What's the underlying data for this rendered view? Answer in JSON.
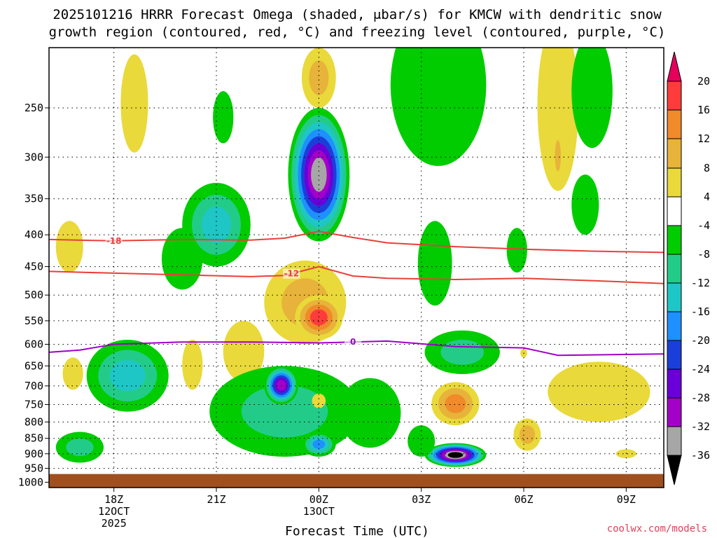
{
  "title_line1": "2025101216 HRRR Forecast Omega (shaded, μbar/s) for KMCW with dendritic snow",
  "title_line2": "growth region (contoured, red, °C) and freezing level (contoured, purple, °C)",
  "credit": "coolwx.com/models",
  "chart_data": {
    "type": "time-height cross section (filled contour + line contours)",
    "title": "2025101216 HRRR Forecast Omega (shaded, μbar/s) for KMCW with dendritic snow growth region (contoured, red, °C) and freezing level (contoured, purple, °C)",
    "xlabel": "Forecast Time (UTC)",
    "ylabel": "",
    "x_range_hours_from_18Z": [
      -1.9,
      16.1
    ],
    "y_range_mb": [
      200,
      1020
    ],
    "y_axis": "pressure (mb), log scale, inverted",
    "x_ticks": [
      {
        "hour": 0,
        "lines": [
          "18Z",
          "12OCT",
          "2025"
        ]
      },
      {
        "hour": 3,
        "lines": [
          "21Z"
        ]
      },
      {
        "hour": 6,
        "lines": [
          "00Z",
          "13OCT"
        ]
      },
      {
        "hour": 9,
        "lines": [
          "03Z"
        ]
      },
      {
        "hour": 12,
        "lines": [
          "06Z"
        ]
      },
      {
        "hour": 15,
        "lines": [
          "09Z"
        ]
      }
    ],
    "y_ticks": [
      {
        "p": 250,
        "label": "250"
      },
      {
        "p": 300,
        "label": "300"
      },
      {
        "p": 350,
        "label": "350"
      },
      {
        "p": 400,
        "label": "400"
      },
      {
        "p": 450,
        "label": "450"
      },
      {
        "p": 500,
        "label": "500"
      },
      {
        "p": 550,
        "label": "550"
      },
      {
        "p": 600,
        "label": "600"
      },
      {
        "p": 650,
        "label": "650"
      },
      {
        "p": 700,
        "label": "700"
      },
      {
        "p": 750,
        "label": "750"
      },
      {
        "p": 800,
        "label": "800"
      },
      {
        "p": 850,
        "label": "850"
      },
      {
        "p": 900,
        "label": "900"
      },
      {
        "p": 950,
        "label": "950"
      },
      {
        "p": 1000,
        "label": "1000"
      }
    ],
    "grid": true,
    "surface_pressure_mb": 970,
    "colorbar": {
      "levels": [
        20,
        16,
        12,
        8,
        4,
        -4,
        -8,
        -12,
        -16,
        -20,
        -24,
        -28,
        -32,
        -36
      ],
      "labels": [
        "20",
        "16",
        "12",
        "8",
        "4",
        "-4",
        "-8",
        "-12",
        "-16",
        "-20",
        "-24",
        "-28",
        "-32",
        "-36"
      ],
      "colors": [
        "#e6005c",
        "#ff3b3b",
        "#f08a2a",
        "#e7b33a",
        "#e9d93a",
        "#ffffff",
        "#00cc00",
        "#22cc88",
        "#1fc6c6",
        "#1e90ff",
        "#1a3fd9",
        "#6a00d9",
        "#a300c8",
        "#a6a6a6",
        "#000000"
      ]
    },
    "omega_features": [
      {
        "hour": -1.3,
        "p": 420,
        "dh": 0.4,
        "dp": 40,
        "value": 5
      },
      {
        "hour": -1.2,
        "p": 670,
        "dh": 0.3,
        "dp": 40,
        "value": 5
      },
      {
        "hour": -1.0,
        "p": 880,
        "dh": 0.7,
        "dp": 50,
        "value": -11
      },
      {
        "hour": 0.6,
        "p": 250,
        "dh": 0.4,
        "dp": 45,
        "value": 5
      },
      {
        "hour": 0.4,
        "p": 680,
        "dh": 1.2,
        "dp": 90,
        "value": -14
      },
      {
        "hour": 2.0,
        "p": 440,
        "dh": 0.6,
        "dp": 50,
        "value": -8
      },
      {
        "hour": 2.3,
        "p": 650,
        "dh": 0.3,
        "dp": 60,
        "value": 5
      },
      {
        "hour": 3.0,
        "p": 390,
        "dh": 1.0,
        "dp": 60,
        "value": -14
      },
      {
        "hour": 3.2,
        "p": 260,
        "dh": 0.3,
        "dp": 25,
        "value": -7
      },
      {
        "hour": 3.8,
        "p": 620,
        "dh": 0.6,
        "dp": 70,
        "value": 5
      },
      {
        "hour": 5.6,
        "p": 520,
        "dh": 1.2,
        "dp": 80,
        "value": 11
      },
      {
        "hour": 6.0,
        "p": 545,
        "dh": 0.7,
        "dp": 45,
        "value": 20
      },
      {
        "hour": 6.0,
        "p": 330,
        "dh": 0.9,
        "dp": 80,
        "value": -36
      },
      {
        "hour": 6.0,
        "p": 225,
        "dh": 0.5,
        "dp": 25,
        "value": 9
      },
      {
        "hour": 5.0,
        "p": 780,
        "dh": 2.2,
        "dp": 130,
        "value": -12
      },
      {
        "hour": 4.9,
        "p": 700,
        "dh": 0.5,
        "dp": 50,
        "value": -30
      },
      {
        "hour": 6.0,
        "p": 870,
        "dh": 0.5,
        "dp": 40,
        "value": -17
      },
      {
        "hour": 6.0,
        "p": 740,
        "dh": 0.2,
        "dp": 20,
        "value": 5
      },
      {
        "hour": 7.5,
        "p": 780,
        "dh": 0.9,
        "dp": 100,
        "value": -8
      },
      {
        "hour": 9.5,
        "p": 240,
        "dh": 1.4,
        "dp": 70,
        "value": -8
      },
      {
        "hour": 9.4,
        "p": 450,
        "dh": 0.5,
        "dp": 70,
        "value": -8
      },
      {
        "hour": 10.2,
        "p": 620,
        "dh": 1.1,
        "dp": 50,
        "value": -12
      },
      {
        "hour": 10.0,
        "p": 750,
        "dh": 0.7,
        "dp": 60,
        "value": 14
      },
      {
        "hour": 10.0,
        "p": 905,
        "dh": 0.9,
        "dp": 40,
        "value": -38
      },
      {
        "hour": 9.0,
        "p": 860,
        "dh": 0.4,
        "dp": 50,
        "value": -8
      },
      {
        "hour": 11.8,
        "p": 425,
        "dh": 0.3,
        "dp": 35,
        "value": -7
      },
      {
        "hour": 12.1,
        "p": 840,
        "dh": 0.4,
        "dp": 50,
        "value": 10
      },
      {
        "hour": 12.0,
        "p": 620,
        "dh": 0.1,
        "dp": 10,
        "value": 5
      },
      {
        "hour": 13.0,
        "p": 260,
        "dh": 0.6,
        "dp": 80,
        "value": 7
      },
      {
        "hour": 13.0,
        "p": 300,
        "dh": 0.15,
        "dp": 30,
        "value": 10
      },
      {
        "hour": 14.0,
        "p": 240,
        "dh": 0.6,
        "dp": 50,
        "value": -7
      },
      {
        "hour": 13.8,
        "p": 360,
        "dh": 0.4,
        "dp": 40,
        "value": -7
      },
      {
        "hour": 14.2,
        "p": 720,
        "dh": 1.5,
        "dp": 80,
        "value": 6
      },
      {
        "hour": 15.0,
        "p": 900,
        "dh": 0.3,
        "dp": 15,
        "value": 6
      }
    ],
    "series": [
      {
        "name": "-18 °C (dendritic growth top)",
        "color": "#e8403a",
        "label": "-18",
        "label_hour": 0.0,
        "x": [
          -1.9,
          0,
          2,
          4,
          5,
          6,
          7,
          8,
          10,
          12,
          14,
          16.1
        ],
        "y": [
          407,
          409,
          407,
          408,
          405,
          395,
          404,
          412,
          418,
          422,
          425,
          427
        ]
      },
      {
        "name": "-12 °C (dendritic growth bottom)",
        "color": "#e8403a",
        "label": "-12",
        "label_hour": 5.2,
        "x": [
          -1.9,
          0,
          2,
          4,
          5,
          6,
          7,
          8,
          10,
          12,
          14,
          16.1
        ],
        "y": [
          458,
          461,
          464,
          467,
          465,
          450,
          466,
          470,
          472,
          470,
          474,
          479
        ]
      },
      {
        "name": "0 °C (freezing level)",
        "color": "#a000c8",
        "label": "0",
        "label_hour": 7.0,
        "x": [
          -1.9,
          -1,
          0,
          2,
          4,
          6,
          8,
          10,
          12,
          13,
          14,
          16.1
        ],
        "y": [
          618,
          613,
          600,
          595,
          595,
          597,
          593,
          605,
          608,
          625,
          624,
          622
        ]
      }
    ]
  }
}
